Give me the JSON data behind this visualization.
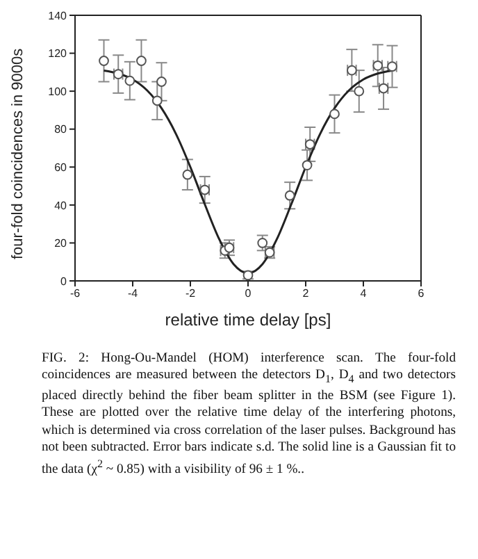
{
  "chart_data": {
    "type": "scatter",
    "xlabel": "relative time delay [ps]",
    "ylabel": "four-fold coincidences in 9000s",
    "xlim": [
      -6,
      6
    ],
    "xticks": [
      -6,
      -4,
      -2,
      0,
      2,
      4,
      6
    ],
    "ylim": [
      0,
      140
    ],
    "yticks": [
      0,
      20,
      40,
      60,
      80,
      100,
      120,
      140
    ],
    "grid": false,
    "legend": false,
    "marker": "circle",
    "annotations": [
      "FIG. 2: Hong-Ou-Mandel (HOM) interference scan. The four-fold coincidences are measured between the detectors D$_{1}$, D$_{4}$ and two detectors placed directly behind the fiber beam splitter in the BSM (see Figure 1). These are plotted over the relative time delay of the interfering photons, which is determined via cross correlation of the laser pulses. Background has not been subtracted. Error bars indicate s.d. The solid line is a Gaussian fit to the data (χ$^{2}$ ~ 0.85) with a visibility of 96 ± 1 %.."
    ],
    "series": [
      {
        "type": "scatter",
        "color": "#555555",
        "x": [
          -5,
          -4.5,
          -4.1,
          -3.7,
          -3,
          -3.15,
          -2.1,
          -1.5,
          -0.8,
          -0.65,
          0,
          0.5,
          0.75,
          1.45,
          2.05,
          2.15,
          3,
          3.6,
          3.85,
          4.5,
          4.7,
          5
        ],
        "values": [
          116,
          109,
          105.5,
          116,
          105,
          95,
          56,
          48,
          16,
          17.5,
          3,
          20,
          15,
          45,
          61,
          72,
          88,
          111,
          100,
          113.5,
          101.5,
          113
        ],
        "errors": [
          11,
          10,
          10,
          11,
          10,
          10,
          8,
          7,
          4,
          4,
          2,
          4,
          3,
          7,
          8,
          9,
          10,
          11,
          11,
          11,
          11,
          11
        ],
        "xerrors": [
          null,
          0.15,
          null,
          null,
          null,
          null,
          null,
          0.15,
          0.15,
          0.15,
          null,
          null,
          0.15,
          null,
          null,
          0.15,
          null,
          0.15,
          null,
          0.15,
          0.15,
          0.15
        ]
      },
      {
        "type": "line",
        "color": "#222222",
        "line_style": "solid",
        "marker": "none",
        "x": [
          -5,
          -4.5,
          -4,
          -3.5,
          -3,
          -2.5,
          -2,
          -1.5,
          -1,
          -0.5,
          0,
          0.5,
          1,
          1.5,
          2,
          2.5,
          3,
          3.5,
          4,
          4.5,
          5
        ],
        "values": [
          110.9,
          109.3,
          106.2,
          100.4,
          91,
          77.5,
          60,
          40.4,
          22,
          8.8,
          4,
          8.8,
          22,
          40.4,
          60,
          77.5,
          91,
          100.4,
          106.2,
          109.3,
          110.9
        ]
      }
    ]
  }
}
